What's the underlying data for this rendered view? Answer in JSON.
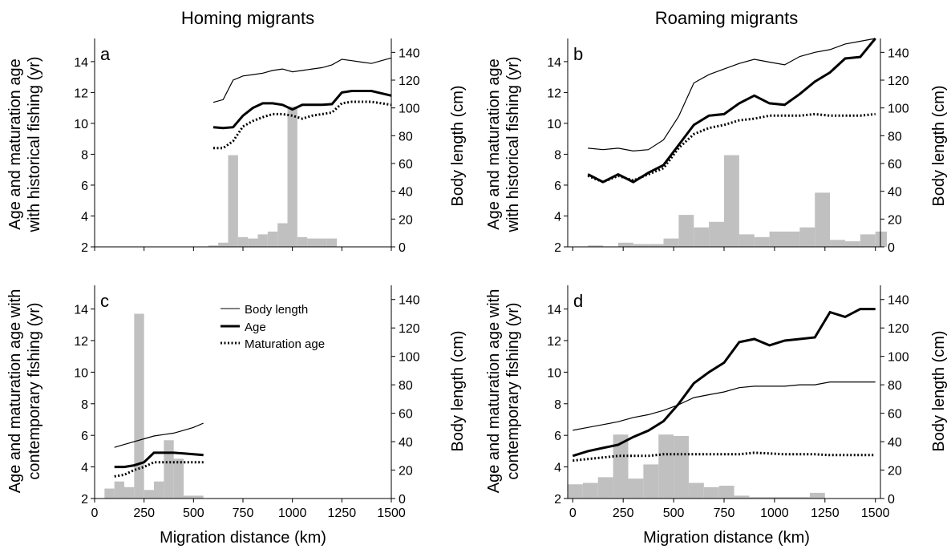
{
  "figure": {
    "column_titles": [
      "Homing migrants",
      "Roaming migrants"
    ],
    "row_ylabels": [
      [
        "Age and maturation age",
        "with historical fishing (yr)"
      ],
      [
        "Age and maturation age with",
        "contemporary fishing (yr)"
      ]
    ],
    "right_ylabel": "Body length (cm)",
    "xlabel": "Migration distance (km)",
    "legend": [
      "Body length",
      "Age",
      "Maturation age"
    ],
    "colors": {
      "bars": "#c0c0c0",
      "lines": "#000000"
    }
  },
  "chart_data": [
    {
      "type": "line",
      "panel": "a",
      "xlim": [
        0,
        1500
      ],
      "ylim_left": [
        2,
        15.5
      ],
      "yticks_left": [
        2,
        4,
        6,
        8,
        10,
        12,
        14
      ],
      "ylim_right": [
        0,
        150
      ],
      "yticks_right": [
        0,
        20,
        40,
        60,
        80,
        100,
        120,
        140
      ],
      "xticks": [
        0,
        250,
        500,
        750,
        1000,
        1250,
        1500
      ],
      "x": [
        600,
        650,
        700,
        750,
        800,
        850,
        900,
        950,
        1000,
        1050,
        1100,
        1150,
        1200,
        1250,
        1300,
        1350,
        1400,
        1450,
        1500
      ],
      "body_length": [
        104,
        106,
        120,
        123,
        124,
        125,
        127,
        128,
        126,
        127,
        128,
        129,
        131,
        135,
        134,
        133,
        132,
        134,
        136
      ],
      "age": [
        9.75,
        9.7,
        9.75,
        10.5,
        11.0,
        11.3,
        11.3,
        11.2,
        10.9,
        11.2,
        11.2,
        11.2,
        11.25,
        12.0,
        12.1,
        12.1,
        12.1,
        11.95,
        11.8
      ],
      "maturation_age": [
        8.4,
        8.4,
        8.85,
        9.8,
        10.15,
        10.4,
        10.6,
        10.6,
        10.5,
        10.3,
        10.5,
        10.6,
        10.7,
        11.3,
        11.4,
        11.4,
        11.4,
        11.3,
        11.2
      ],
      "bars": [
        {
          "x0": 575,
          "x1": 625,
          "v": 1
        },
        {
          "x0": 625,
          "x1": 675,
          "v": 3
        },
        {
          "x0": 675,
          "x1": 725,
          "v": 66
        },
        {
          "x0": 725,
          "x1": 775,
          "v": 7
        },
        {
          "x0": 775,
          "x1": 825,
          "v": 6
        },
        {
          "x0": 825,
          "x1": 875,
          "v": 9
        },
        {
          "x0": 875,
          "x1": 925,
          "v": 11
        },
        {
          "x0": 925,
          "x1": 975,
          "v": 17
        },
        {
          "x0": 975,
          "x1": 1025,
          "v": 101
        },
        {
          "x0": 1025,
          "x1": 1075,
          "v": 7
        },
        {
          "x0": 1075,
          "x1": 1125,
          "v": 6
        },
        {
          "x0": 1125,
          "x1": 1175,
          "v": 6
        },
        {
          "x0": 1175,
          "x1": 1225,
          "v": 6
        }
      ]
    },
    {
      "type": "line",
      "panel": "b",
      "xlim": [
        -25,
        1525
      ],
      "ylim_left": [
        2,
        15.5
      ],
      "yticks_left": [
        2,
        4,
        6,
        8,
        10,
        12,
        14
      ],
      "ylim_right": [
        0,
        150
      ],
      "yticks_right": [
        0,
        20,
        40,
        60,
        80,
        100,
        120,
        140
      ],
      "xticks": [
        0,
        250,
        500,
        750,
        1000,
        1250,
        1500
      ],
      "x": [
        75,
        150,
        225,
        300,
        375,
        450,
        525,
        600,
        675,
        750,
        825,
        900,
        975,
        1050,
        1125,
        1200,
        1275,
        1350,
        1425,
        1500
      ],
      "body_length": [
        71,
        70,
        71,
        69,
        70,
        77,
        94,
        118,
        124,
        128,
        132,
        135,
        133,
        131,
        137,
        140,
        142,
        146,
        148,
        150
      ],
      "age": [
        6.7,
        6.2,
        6.7,
        6.2,
        6.8,
        7.3,
        8.6,
        9.9,
        10.5,
        10.6,
        11.3,
        11.8,
        11.3,
        11.2,
        11.9,
        12.7,
        13.3,
        14.2,
        14.3,
        15.5
      ],
      "maturation_age": [
        6.6,
        6.2,
        6.6,
        6.3,
        6.7,
        7.1,
        8.4,
        9.3,
        9.7,
        9.9,
        10.2,
        10.3,
        10.5,
        10.5,
        10.5,
        10.6,
        10.5,
        10.5,
        10.5,
        10.6
      ],
      "bars": [
        {
          "x0": 75,
          "x1": 150,
          "v": 1
        },
        {
          "x0": 150,
          "x1": 225,
          "v": 0
        },
        {
          "x0": 225,
          "x1": 300,
          "v": 3
        },
        {
          "x0": 300,
          "x1": 375,
          "v": 2
        },
        {
          "x0": 375,
          "x1": 450,
          "v": 2
        },
        {
          "x0": 450,
          "x1": 525,
          "v": 6
        },
        {
          "x0": 525,
          "x1": 600,
          "v": 23
        },
        {
          "x0": 600,
          "x1": 675,
          "v": 14
        },
        {
          "x0": 675,
          "x1": 750,
          "v": 18
        },
        {
          "x0": 750,
          "x1": 825,
          "v": 66
        },
        {
          "x0": 825,
          "x1": 900,
          "v": 9
        },
        {
          "x0": 900,
          "x1": 975,
          "v": 7
        },
        {
          "x0": 975,
          "x1": 1050,
          "v": 11
        },
        {
          "x0": 1050,
          "x1": 1125,
          "v": 11
        },
        {
          "x0": 1125,
          "x1": 1200,
          "v": 14
        },
        {
          "x0": 1200,
          "x1": 1275,
          "v": 39
        },
        {
          "x0": 1275,
          "x1": 1350,
          "v": 5
        },
        {
          "x0": 1350,
          "x1": 1425,
          "v": 4
        },
        {
          "x0": 1425,
          "x1": 1500,
          "v": 9
        },
        {
          "x0": 1500,
          "x1": 1575,
          "v": 11
        }
      ]
    },
    {
      "type": "line",
      "panel": "c",
      "xlim": [
        0,
        1500
      ],
      "ylim_left": [
        2,
        15.5
      ],
      "yticks_left": [
        2,
        4,
        6,
        8,
        10,
        12,
        14
      ],
      "ylim_right": [
        0,
        150
      ],
      "yticks_right": [
        0,
        20,
        40,
        60,
        80,
        100,
        120,
        140
      ],
      "xticks": [
        0,
        250,
        500,
        750,
        1000,
        1250,
        1500
      ],
      "x": [
        100,
        150,
        200,
        250,
        300,
        350,
        400,
        450,
        500,
        550
      ],
      "body_length": [
        36,
        38,
        40,
        42,
        44,
        45,
        46,
        48,
        50,
        53
      ],
      "age": [
        4.0,
        4.0,
        4.1,
        4.3,
        4.9,
        4.9,
        4.9,
        4.85,
        4.8,
        4.75
      ],
      "maturation_age": [
        3.4,
        3.5,
        3.8,
        4.0,
        4.3,
        4.3,
        4.3,
        4.3,
        4.3,
        4.3
      ],
      "bars": [
        {
          "x0": 50,
          "x1": 100,
          "v": 7
        },
        {
          "x0": 100,
          "x1": 150,
          "v": 12
        },
        {
          "x0": 150,
          "x1": 200,
          "v": 8
        },
        {
          "x0": 200,
          "x1": 250,
          "v": 130
        },
        {
          "x0": 250,
          "x1": 300,
          "v": 6
        },
        {
          "x0": 300,
          "x1": 350,
          "v": 12
        },
        {
          "x0": 350,
          "x1": 400,
          "v": 41
        },
        {
          "x0": 400,
          "x1": 450,
          "v": 28
        },
        {
          "x0": 450,
          "x1": 500,
          "v": 2
        },
        {
          "x0": 500,
          "x1": 550,
          "v": 2
        }
      ]
    },
    {
      "type": "line",
      "panel": "d",
      "xlim": [
        -25,
        1525
      ],
      "ylim_left": [
        2,
        15.5
      ],
      "yticks_left": [
        2,
        4,
        6,
        8,
        10,
        12,
        14
      ],
      "ylim_right": [
        0,
        150
      ],
      "yticks_right": [
        0,
        20,
        40,
        60,
        80,
        100,
        120,
        140
      ],
      "xticks": [
        0,
        250,
        500,
        750,
        1000,
        1250,
        1500
      ],
      "x": [
        0,
        75,
        150,
        225,
        300,
        375,
        450,
        525,
        600,
        675,
        750,
        825,
        900,
        975,
        1050,
        1125,
        1200,
        1275,
        1350,
        1425,
        1500
      ],
      "body_length": [
        48,
        50,
        52,
        54,
        57,
        59,
        62,
        66,
        71,
        73,
        75,
        78,
        79,
        79,
        79,
        80,
        80,
        82,
        82,
        82,
        82
      ],
      "age": [
        4.7,
        5.0,
        5.2,
        5.4,
        5.9,
        6.3,
        6.9,
        8.0,
        9.3,
        10.0,
        10.6,
        11.9,
        12.1,
        11.7,
        12.0,
        12.1,
        12.2,
        13.8,
        13.5,
        14.0,
        14.0
      ],
      "maturation_age": [
        4.4,
        4.5,
        4.6,
        4.7,
        4.7,
        4.7,
        4.8,
        4.8,
        4.8,
        4.8,
        4.8,
        4.8,
        4.9,
        4.85,
        4.8,
        4.8,
        4.8,
        4.75,
        4.75,
        4.75,
        4.75
      ],
      "bars": [
        {
          "x0": -25,
          "x1": 50,
          "v": 10
        },
        {
          "x0": 50,
          "x1": 125,
          "v": 11
        },
        {
          "x0": 125,
          "x1": 200,
          "v": 15
        },
        {
          "x0": 200,
          "x1": 275,
          "v": 45
        },
        {
          "x0": 275,
          "x1": 350,
          "v": 14
        },
        {
          "x0": 350,
          "x1": 425,
          "v": 24
        },
        {
          "x0": 425,
          "x1": 500,
          "v": 45
        },
        {
          "x0": 500,
          "x1": 575,
          "v": 44
        },
        {
          "x0": 575,
          "x1": 650,
          "v": 11
        },
        {
          "x0": 650,
          "x1": 725,
          "v": 8
        },
        {
          "x0": 725,
          "x1": 800,
          "v": 9
        },
        {
          "x0": 800,
          "x1": 875,
          "v": 2
        },
        {
          "x0": 875,
          "x1": 950,
          "v": 1
        },
        {
          "x0": 950,
          "x1": 1025,
          "v": 1
        },
        {
          "x0": 1025,
          "x1": 1100,
          "v": 1
        },
        {
          "x0": 1100,
          "x1": 1175,
          "v": 1
        },
        {
          "x0": 1175,
          "x1": 1250,
          "v": 4
        }
      ]
    }
  ]
}
